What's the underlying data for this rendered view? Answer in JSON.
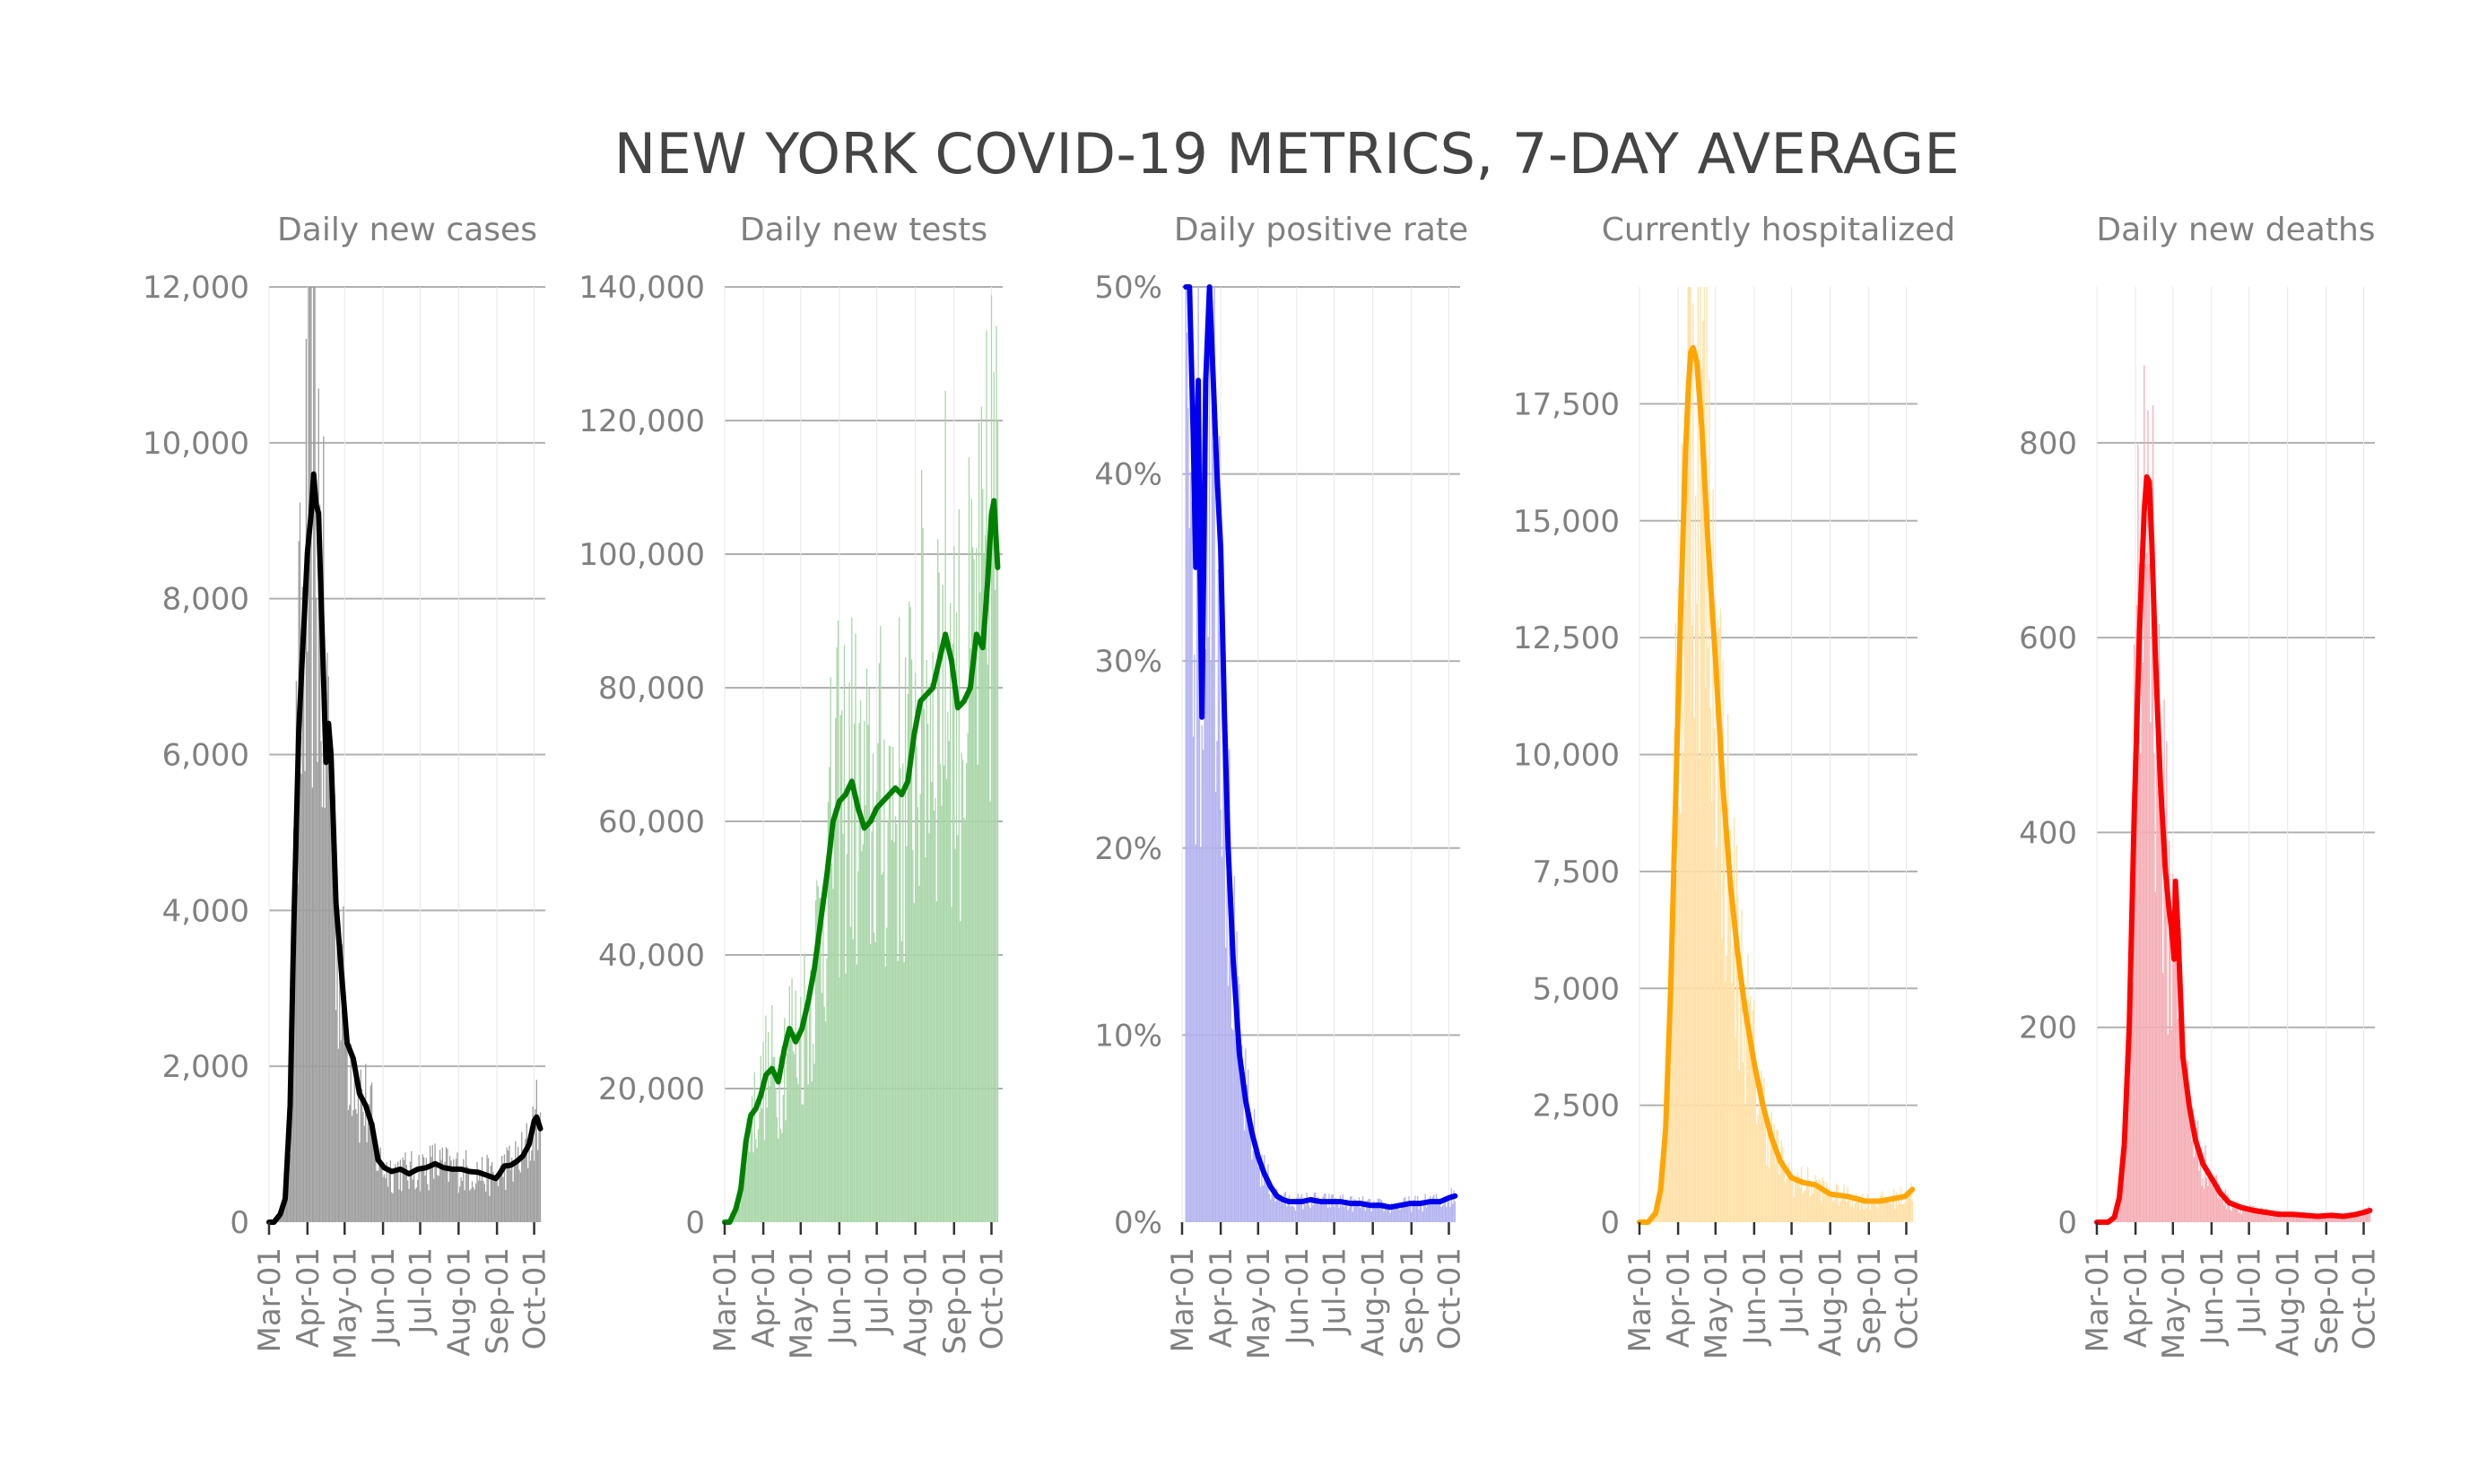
{
  "title": "NEW YORK COVID-19 METRICS, 7-DAY AVERAGE",
  "chart_data": [
    {
      "type": "bar",
      "title": "Daily new cases",
      "color": "#000000",
      "bar_color": "#9e9e9e",
      "ylim": [
        0,
        12000
      ],
      "yticks": [
        0,
        2000,
        4000,
        6000,
        8000,
        10000,
        12000
      ],
      "ytick_labels": [
        "0",
        "2,000",
        "4,000",
        "6,000",
        "8,000",
        "10,000",
        "12,000"
      ],
      "xlim": [
        "2020-03-01",
        "2020-10-10"
      ],
      "xticks": [
        "2020-03-01",
        "2020-04-01",
        "2020-05-01",
        "2020-06-01",
        "2020-07-01",
        "2020-08-01",
        "2020-09-01",
        "2020-10-01"
      ],
      "xtick_labels": [
        "Mar-01",
        "Apr-01",
        "May-01",
        "Jun-01",
        "Jul-01",
        "Aug-01",
        "Sep-01",
        "Oct-01"
      ],
      "series": [
        {
          "type": "line",
          "x": [
            "2020-03-01",
            "2020-03-05",
            "2020-03-10",
            "2020-03-14",
            "2020-03-18",
            "2020-03-21",
            "2020-03-25",
            "2020-03-28",
            "2020-04-01",
            "2020-04-04",
            "2020-04-06",
            "2020-04-08",
            "2020-04-10",
            "2020-04-13",
            "2020-04-16",
            "2020-04-18",
            "2020-04-20",
            "2020-04-24",
            "2020-04-28",
            "2020-05-03",
            "2020-05-08",
            "2020-05-13",
            "2020-05-18",
            "2020-05-23",
            "2020-05-28",
            "2020-06-02",
            "2020-06-08",
            "2020-06-15",
            "2020-06-22",
            "2020-06-29",
            "2020-07-06",
            "2020-07-13",
            "2020-07-20",
            "2020-07-27",
            "2020-08-03",
            "2020-08-10",
            "2020-08-17",
            "2020-08-24",
            "2020-08-31",
            "2020-09-03",
            "2020-09-07",
            "2020-09-12",
            "2020-09-17",
            "2020-09-22",
            "2020-09-27",
            "2020-10-01",
            "2020-10-03",
            "2020-10-06"
          ],
          "y": [
            0,
            0,
            100,
            300,
            1500,
            3800,
            6300,
            7300,
            8600,
            9100,
            9600,
            9200,
            9100,
            7500,
            5900,
            6400,
            6000,
            4100,
            3300,
            2300,
            2100,
            1650,
            1500,
            1250,
            800,
            700,
            650,
            680,
            620,
            680,
            700,
            750,
            700,
            680,
            680,
            650,
            640,
            600,
            560,
            620,
            720,
            730,
            780,
            850,
            1000,
            1300,
            1350,
            1200
          ]
        }
      ]
    },
    {
      "type": "bar",
      "title": "Daily new tests",
      "color": "#008000",
      "bar_color": "#a9d6a9",
      "ylim": [
        0,
        140000
      ],
      "yticks": [
        0,
        20000,
        40000,
        60000,
        80000,
        100000,
        120000,
        140000
      ],
      "ytick_labels": [
        "0",
        "20,000",
        "40,000",
        "60,000",
        "80,000",
        "100,000",
        "120,000",
        "140,000"
      ],
      "xlim": [
        "2020-03-01",
        "2020-10-10"
      ],
      "xticks": [
        "2020-03-01",
        "2020-04-01",
        "2020-05-01",
        "2020-06-01",
        "2020-07-01",
        "2020-08-01",
        "2020-09-01",
        "2020-10-01"
      ],
      "xtick_labels": [
        "Mar-01",
        "Apr-01",
        "May-01",
        "Jun-01",
        "Jul-01",
        "Aug-01",
        "Sep-01",
        "Oct-01"
      ],
      "series": [
        {
          "type": "line",
          "x": [
            "2020-03-01",
            "2020-03-05",
            "2020-03-10",
            "2020-03-14",
            "2020-03-18",
            "2020-03-22",
            "2020-03-26",
            "2020-03-30",
            "2020-04-03",
            "2020-04-08",
            "2020-04-13",
            "2020-04-18",
            "2020-04-22",
            "2020-04-27",
            "2020-05-02",
            "2020-05-07",
            "2020-05-12",
            "2020-05-17",
            "2020-05-22",
            "2020-05-27",
            "2020-06-01",
            "2020-06-06",
            "2020-06-11",
            "2020-06-16",
            "2020-06-21",
            "2020-06-26",
            "2020-07-01",
            "2020-07-06",
            "2020-07-11",
            "2020-07-16",
            "2020-07-21",
            "2020-07-26",
            "2020-07-31",
            "2020-08-05",
            "2020-08-10",
            "2020-08-15",
            "2020-08-20",
            "2020-08-25",
            "2020-08-30",
            "2020-09-04",
            "2020-09-09",
            "2020-09-14",
            "2020-09-19",
            "2020-09-24",
            "2020-09-28",
            "2020-10-01",
            "2020-10-03",
            "2020-10-06"
          ],
          "y": [
            0,
            0,
            2000,
            5000,
            12000,
            16000,
            17000,
            19000,
            22000,
            23000,
            21000,
            26000,
            29000,
            27000,
            29000,
            33000,
            38000,
            45000,
            52000,
            60000,
            63000,
            64000,
            66000,
            62000,
            59000,
            60000,
            62000,
            63000,
            64000,
            65000,
            64000,
            66000,
            73000,
            78000,
            79000,
            80000,
            84000,
            88000,
            84000,
            77000,
            78000,
            80000,
            88000,
            86000,
            96000,
            106000,
            108000,
            98000
          ]
        }
      ]
    },
    {
      "type": "bar",
      "title": "Daily positive rate",
      "color": "#0000ee",
      "bar_color": "#b3b3f0",
      "ylim": [
        0,
        0.5
      ],
      "yticks": [
        0,
        0.1,
        0.2,
        0.3,
        0.4,
        0.5
      ],
      "ytick_labels": [
        "0%",
        "10%",
        "20%",
        "30%",
        "40%",
        "50%"
      ],
      "xlim": [
        "2020-03-01",
        "2020-10-10"
      ],
      "xticks": [
        "2020-03-01",
        "2020-04-01",
        "2020-05-01",
        "2020-06-01",
        "2020-07-01",
        "2020-08-01",
        "2020-09-01",
        "2020-10-01"
      ],
      "xtick_labels": [
        "Mar-01",
        "Apr-01",
        "May-01",
        "Jun-01",
        "Jul-01",
        "Aug-01",
        "Sep-01",
        "Oct-01"
      ],
      "series": [
        {
          "type": "line",
          "x": [
            "2020-03-04",
            "2020-03-07",
            "2020-03-10",
            "2020-03-12",
            "2020-03-14",
            "2020-03-15",
            "2020-03-17",
            "2020-03-18",
            "2020-03-20",
            "2020-03-23",
            "2020-03-26",
            "2020-03-29",
            "2020-04-01",
            "2020-04-04",
            "2020-04-07",
            "2020-04-11",
            "2020-04-16",
            "2020-04-21",
            "2020-04-26",
            "2020-05-01",
            "2020-05-06",
            "2020-05-11",
            "2020-05-16",
            "2020-05-21",
            "2020-05-26",
            "2020-05-31",
            "2020-06-05",
            "2020-06-12",
            "2020-06-20",
            "2020-06-28",
            "2020-07-06",
            "2020-07-14",
            "2020-07-22",
            "2020-07-30",
            "2020-08-07",
            "2020-08-15",
            "2020-08-23",
            "2020-08-31",
            "2020-09-08",
            "2020-09-16",
            "2020-09-24",
            "2020-10-01",
            "2020-10-06"
          ],
          "y": [
            0.5,
            0.5,
            0.42,
            0.35,
            0.45,
            0.37,
            0.27,
            0.33,
            0.45,
            0.5,
            0.45,
            0.4,
            0.36,
            0.27,
            0.2,
            0.14,
            0.09,
            0.065,
            0.048,
            0.035,
            0.026,
            0.019,
            0.014,
            0.012,
            0.011,
            0.011,
            0.011,
            0.012,
            0.011,
            0.011,
            0.011,
            0.01,
            0.01,
            0.009,
            0.009,
            0.008,
            0.009,
            0.01,
            0.01,
            0.011,
            0.011,
            0.013,
            0.014
          ]
        }
      ]
    },
    {
      "type": "bar",
      "title": "Currently hospitalized",
      "color": "#ffa500",
      "bar_color": "#ffe0a6",
      "ylim": [
        0,
        20000
      ],
      "yticks": [
        0,
        2500,
        5000,
        7500,
        10000,
        12500,
        15000,
        17500
      ],
      "ytick_labels": [
        "0",
        "2,500",
        "5,000",
        "7,500",
        "10,000",
        "12,500",
        "15,000",
        "17,500"
      ],
      "xlim": [
        "2020-03-01",
        "2020-10-10"
      ],
      "xticks": [
        "2020-03-01",
        "2020-04-01",
        "2020-05-01",
        "2020-06-01",
        "2020-07-01",
        "2020-08-01",
        "2020-09-01",
        "2020-10-01"
      ],
      "xtick_labels": [
        "Mar-01",
        "Apr-01",
        "May-01",
        "Jun-01",
        "Jul-01",
        "Aug-01",
        "Sep-01",
        "Oct-01"
      ],
      "series": [
        {
          "type": "line",
          "x": [
            "2020-03-01",
            "2020-03-08",
            "2020-03-14",
            "2020-03-18",
            "2020-03-22",
            "2020-03-26",
            "2020-03-30",
            "2020-04-03",
            "2020-04-07",
            "2020-04-09",
            "2020-04-11",
            "2020-04-13",
            "2020-04-16",
            "2020-04-20",
            "2020-04-25",
            "2020-05-01",
            "2020-05-07",
            "2020-05-13",
            "2020-05-19",
            "2020-05-25",
            "2020-06-01",
            "2020-06-08",
            "2020-06-15",
            "2020-06-22",
            "2020-07-01",
            "2020-07-10",
            "2020-07-20",
            "2020-08-01",
            "2020-08-15",
            "2020-08-29",
            "2020-09-10",
            "2020-09-20",
            "2020-09-30",
            "2020-10-06"
          ],
          "y": [
            0,
            0,
            200,
            700,
            2000,
            5000,
            9000,
            13000,
            16500,
            17700,
            18600,
            18700,
            18400,
            17000,
            14500,
            12000,
            9300,
            7200,
            5700,
            4500,
            3400,
            2500,
            1800,
            1300,
            950,
            850,
            800,
            600,
            550,
            450,
            450,
            500,
            550,
            700
          ]
        }
      ]
    },
    {
      "type": "bar",
      "title": "Daily new deaths",
      "color": "#ff0000",
      "bar_color": "#f4aeb5",
      "ylim": [
        0,
        960
      ],
      "yticks": [
        0,
        200,
        400,
        600,
        800
      ],
      "ytick_labels": [
        "0",
        "200",
        "400",
        "600",
        "800"
      ],
      "xlim": [
        "2020-03-01",
        "2020-10-10"
      ],
      "xticks": [
        "2020-03-01",
        "2020-04-01",
        "2020-05-01",
        "2020-06-01",
        "2020-07-01",
        "2020-08-01",
        "2020-09-01",
        "2020-10-01"
      ],
      "xtick_labels": [
        "Mar-01",
        "Apr-01",
        "May-01",
        "Jun-01",
        "Jul-01",
        "Aug-01",
        "Sep-01",
        "Oct-01"
      ],
      "series": [
        {
          "type": "line",
          "x": [
            "2020-03-01",
            "2020-03-10",
            "2020-03-15",
            "2020-03-19",
            "2020-03-23",
            "2020-03-27",
            "2020-03-31",
            "2020-04-04",
            "2020-04-08",
            "2020-04-10",
            "2020-04-12",
            "2020-04-14",
            "2020-04-17",
            "2020-04-21",
            "2020-04-25",
            "2020-04-28",
            "2020-04-30",
            "2020-05-02",
            "2020-05-03",
            "2020-05-05",
            "2020-05-09",
            "2020-05-14",
            "2020-05-19",
            "2020-05-25",
            "2020-06-01",
            "2020-06-08",
            "2020-06-15",
            "2020-06-25",
            "2020-07-05",
            "2020-07-15",
            "2020-07-25",
            "2020-08-05",
            "2020-08-15",
            "2020-08-25",
            "2020-09-05",
            "2020-09-15",
            "2020-09-25",
            "2020-10-01",
            "2020-10-06"
          ],
          "y": [
            0,
            0,
            5,
            25,
            80,
            200,
            420,
            600,
            730,
            765,
            760,
            700,
            580,
            450,
            360,
            320,
            300,
            270,
            350,
            300,
            170,
            120,
            85,
            60,
            45,
            30,
            20,
            15,
            12,
            10,
            8,
            8,
            7,
            6,
            7,
            6,
            8,
            10,
            12
          ]
        }
      ]
    }
  ]
}
